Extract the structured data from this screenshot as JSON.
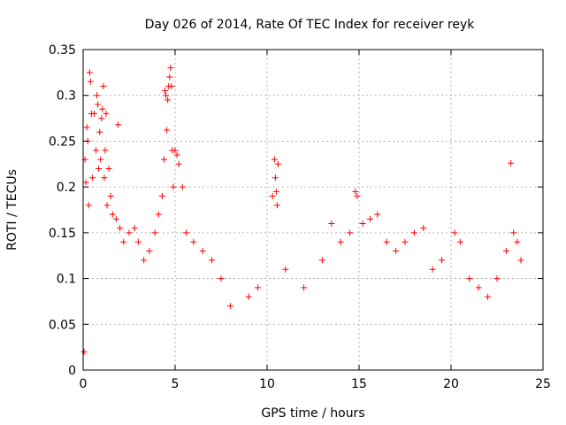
{
  "chart_data": {
    "type": "scatter",
    "title": "Day 026 of 2014, Rate Of TEC Index for receiver reyk",
    "xlabel": "GPS time / hours",
    "ylabel": "ROTI / TECUs",
    "xlim": [
      0,
      25
    ],
    "ylim": [
      0,
      0.35
    ],
    "xticks": [
      0,
      5,
      10,
      15,
      20,
      25
    ],
    "xtick_labels": [
      "0",
      "5",
      "10",
      "15",
      "20",
      "25"
    ],
    "yticks": [
      0,
      0.05,
      0.1,
      0.15,
      0.2,
      0.25,
      0.3,
      0.35
    ],
    "ytick_labels": [
      "0",
      "0.05",
      "0.1",
      "0.15",
      "0.2",
      "0.25",
      "0.3",
      "0.35"
    ],
    "grid": true,
    "marker": "+",
    "color": "#ff0000",
    "series": [
      {
        "name": "ROTI",
        "points": [
          [
            0.05,
            0.02
          ],
          [
            0.1,
            0.23
          ],
          [
            0.15,
            0.205
          ],
          [
            0.2,
            0.265
          ],
          [
            0.25,
            0.25
          ],
          [
            0.3,
            0.18
          ],
          [
            0.35,
            0.325
          ],
          [
            0.4,
            0.315
          ],
          [
            0.45,
            0.28
          ],
          [
            0.5,
            0.21
          ],
          [
            0.6,
            0.28
          ],
          [
            0.7,
            0.24
          ],
          [
            0.75,
            0.3
          ],
          [
            0.8,
            0.29
          ],
          [
            0.85,
            0.22
          ],
          [
            0.9,
            0.26
          ],
          [
            0.95,
            0.23
          ],
          [
            1.0,
            0.275
          ],
          [
            1.05,
            0.285
          ],
          [
            1.1,
            0.31
          ],
          [
            1.15,
            0.21
          ],
          [
            1.2,
            0.24
          ],
          [
            1.25,
            0.28
          ],
          [
            1.3,
            0.18
          ],
          [
            1.4,
            0.22
          ],
          [
            1.5,
            0.19
          ],
          [
            1.6,
            0.17
          ],
          [
            1.8,
            0.165
          ],
          [
            1.9,
            0.268
          ],
          [
            2.0,
            0.155
          ],
          [
            2.2,
            0.14
          ],
          [
            2.5,
            0.15
          ],
          [
            2.8,
            0.155
          ],
          [
            3.0,
            0.14
          ],
          [
            3.3,
            0.12
          ],
          [
            3.6,
            0.13
          ],
          [
            3.9,
            0.15
          ],
          [
            4.1,
            0.17
          ],
          [
            4.3,
            0.19
          ],
          [
            4.4,
            0.23
          ],
          [
            4.45,
            0.305
          ],
          [
            4.5,
            0.3
          ],
          [
            4.55,
            0.262
          ],
          [
            4.6,
            0.295
          ],
          [
            4.65,
            0.31
          ],
          [
            4.7,
            0.32
          ],
          [
            4.75,
            0.33
          ],
          [
            4.8,
            0.31
          ],
          [
            4.85,
            0.24
          ],
          [
            4.9,
            0.2
          ],
          [
            5.0,
            0.24
          ],
          [
            5.1,
            0.235
          ],
          [
            5.2,
            0.225
          ],
          [
            5.4,
            0.2
          ],
          [
            5.6,
            0.15
          ],
          [
            6.0,
            0.14
          ],
          [
            6.5,
            0.13
          ],
          [
            7.0,
            0.12
          ],
          [
            7.5,
            0.1
          ],
          [
            8.0,
            0.07
          ],
          [
            9.0,
            0.08
          ],
          [
            9.5,
            0.09
          ],
          [
            10.3,
            0.19
          ],
          [
            10.4,
            0.23
          ],
          [
            10.45,
            0.21
          ],
          [
            10.5,
            0.195
          ],
          [
            10.55,
            0.18
          ],
          [
            10.6,
            0.225
          ],
          [
            11.0,
            0.11
          ],
          [
            12.0,
            0.09
          ],
          [
            13.0,
            0.12
          ],
          [
            13.5,
            0.16
          ],
          [
            14.0,
            0.14
          ],
          [
            14.5,
            0.15
          ],
          [
            14.8,
            0.195
          ],
          [
            14.9,
            0.19
          ],
          [
            15.2,
            0.16
          ],
          [
            15.6,
            0.165
          ],
          [
            16.0,
            0.17
          ],
          [
            16.5,
            0.14
          ],
          [
            17.0,
            0.13
          ],
          [
            17.5,
            0.14
          ],
          [
            18.0,
            0.15
          ],
          [
            18.5,
            0.155
          ],
          [
            19.0,
            0.11
          ],
          [
            19.5,
            0.12
          ],
          [
            20.2,
            0.15
          ],
          [
            20.5,
            0.14
          ],
          [
            21.0,
            0.1
          ],
          [
            21.5,
            0.09
          ],
          [
            22.0,
            0.08
          ],
          [
            22.5,
            0.1
          ],
          [
            23.0,
            0.13
          ],
          [
            23.25,
            0.226
          ],
          [
            23.4,
            0.15
          ],
          [
            23.6,
            0.14
          ],
          [
            23.8,
            0.12
          ]
        ]
      }
    ]
  }
}
